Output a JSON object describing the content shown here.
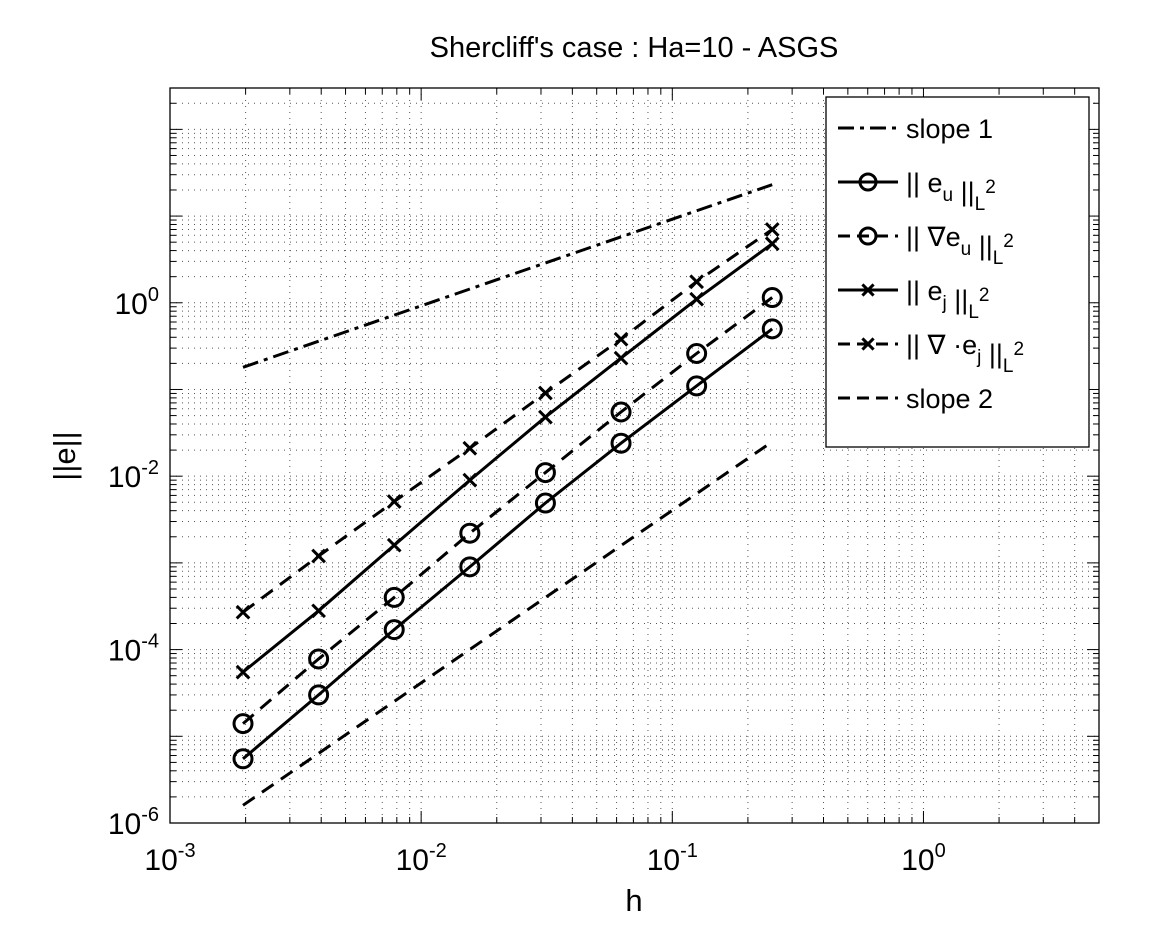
{
  "chart_data": {
    "type": "line",
    "title": "Shercliff's case : Ha=10 - ASGS",
    "xlabel": "h",
    "ylabel": "||e||",
    "xscale": "log",
    "yscale": "log",
    "xlim": [
      0.001,
      5
    ],
    "ylim": [
      1e-06,
      300
    ],
    "grid": "dotted",
    "legend_position": "top-right",
    "x_ticks": [
      {
        "value": 0.001,
        "base": "10",
        "exp": "-3"
      },
      {
        "value": 0.01,
        "base": "10",
        "exp": "-2"
      },
      {
        "value": 0.1,
        "base": "10",
        "exp": "-1"
      },
      {
        "value": 1,
        "base": "10",
        "exp": "0"
      }
    ],
    "y_ticks": [
      {
        "value": 1e-06,
        "base": "10",
        "exp": "-6"
      },
      {
        "value": 0.0001,
        "base": "10",
        "exp": "-4"
      },
      {
        "value": 0.01,
        "base": "10",
        "exp": "-2"
      },
      {
        "value": 1,
        "base": "10",
        "exp": "0"
      }
    ],
    "x": [
      0.001953125,
      0.00390625,
      0.0078125,
      0.015625,
      0.03125,
      0.0625,
      0.125,
      0.25
    ],
    "series": [
      {
        "name": "slope 1",
        "style": "dashdot",
        "marker": "none",
        "x": [
          0.001953125,
          0.25
        ],
        "values": [
          0.18,
          23
        ]
      },
      {
        "name": "|| e_u ||_L2",
        "style": "solid",
        "marker": "circle",
        "values": [
          5.5e-06,
          3e-05,
          0.00017,
          0.0009,
          0.0049,
          0.024,
          0.11,
          0.5
        ]
      },
      {
        "name": "|| ∇ e_u ||_L2",
        "style": "dashed",
        "marker": "circle",
        "values": [
          1.4e-05,
          7.8e-05,
          0.0004,
          0.0022,
          0.011,
          0.055,
          0.26,
          1.15
        ]
      },
      {
        "name": "|| e_j ||_L2",
        "style": "solid",
        "marker": "x",
        "values": [
          5.5e-05,
          0.00028,
          0.0016,
          0.009,
          0.048,
          0.23,
          1.1,
          4.8
        ]
      },
      {
        "name": "|| ∇ ·e_j ||_L2",
        "style": "dashed",
        "marker": "x",
        "values": [
          0.00027,
          0.0012,
          0.0051,
          0.021,
          0.091,
          0.38,
          1.75,
          7.0
        ]
      },
      {
        "name": "slope 2",
        "style": "dashed",
        "marker": "none",
        "x": [
          0.001953125,
          0.25
        ],
        "values": [
          1.6e-06,
          0.025
        ]
      }
    ]
  },
  "legend": [
    {
      "parts": [
        {
          "t": "slope 1"
        }
      ]
    },
    {
      "parts": [
        {
          "t": "|| e"
        },
        {
          "sub": "u"
        },
        {
          "t": " ||"
        },
        {
          "sub": "L"
        },
        {
          "sup": "2"
        }
      ]
    },
    {
      "parts": [
        {
          "t": "|| ∇e"
        },
        {
          "sub": "u"
        },
        {
          "t": " ||"
        },
        {
          "sub": "L"
        },
        {
          "sup": "2"
        }
      ]
    },
    {
      "parts": [
        {
          "t": "|| e"
        },
        {
          "sub": "j"
        },
        {
          "t": " ||"
        },
        {
          "sub": "L"
        },
        {
          "sup": "2"
        }
      ]
    },
    {
      "parts": [
        {
          "t": "|| ∇ ·e"
        },
        {
          "sub": "j"
        },
        {
          "t": " ||"
        },
        {
          "sub": "L"
        },
        {
          "sup": "2"
        }
      ]
    },
    {
      "parts": [
        {
          "t": "slope 2"
        }
      ]
    }
  ]
}
